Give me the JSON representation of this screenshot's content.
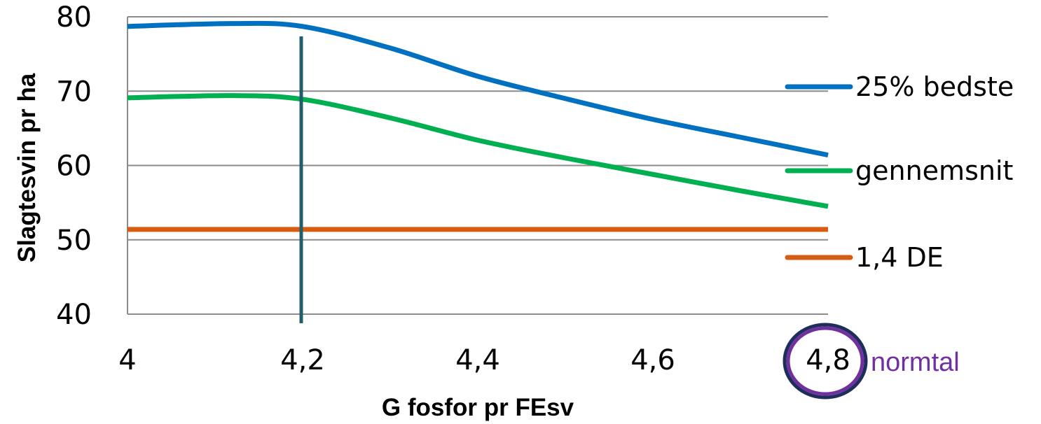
{
  "chart_data": {
    "type": "line",
    "xlabel": "G fosfor pr FEsv",
    "ylabel": "Slagtesvin pr ha",
    "x": [
      4,
      4.2,
      4.4,
      4.6,
      4.8
    ],
    "x_tick_labels": [
      "4",
      "4,2",
      "4,4",
      "4,6",
      "4,8"
    ],
    "y_ticks": [
      40,
      50,
      60,
      70,
      80
    ],
    "ylim": [
      40,
      80
    ],
    "xlim": [
      4,
      4.8
    ],
    "grid": "horizontal",
    "legend": "right",
    "series": [
      {
        "name": "25% bedste",
        "color": "#0070C0",
        "x": [
          4.0,
          4.12,
          4.2,
          4.3,
          4.4,
          4.5,
          4.6,
          4.7,
          4.8
        ],
        "values": [
          78.7,
          79.1,
          78.7,
          75.8,
          72.0,
          69.0,
          66.2,
          63.8,
          61.4
        ]
      },
      {
        "name": "gennemsnit",
        "color": "#00B050",
        "x": [
          4.0,
          4.12,
          4.2,
          4.3,
          4.4,
          4.5,
          4.6,
          4.7,
          4.8
        ],
        "values": [
          69.1,
          69.4,
          68.9,
          66.4,
          63.4,
          61.0,
          58.8,
          56.6,
          54.5
        ]
      },
      {
        "name": "1,4 DE",
        "color": "#D85C10",
        "x": [
          4.0,
          4.8
        ],
        "values": [
          51.4,
          51.4
        ]
      }
    ],
    "annotations": {
      "vertical_line_x": 4.2,
      "vertical_line_color": "#1F5F6B",
      "highlighted_tick": "4,8",
      "highlight_color": "#7030A0",
      "note_text": "normtal"
    }
  }
}
